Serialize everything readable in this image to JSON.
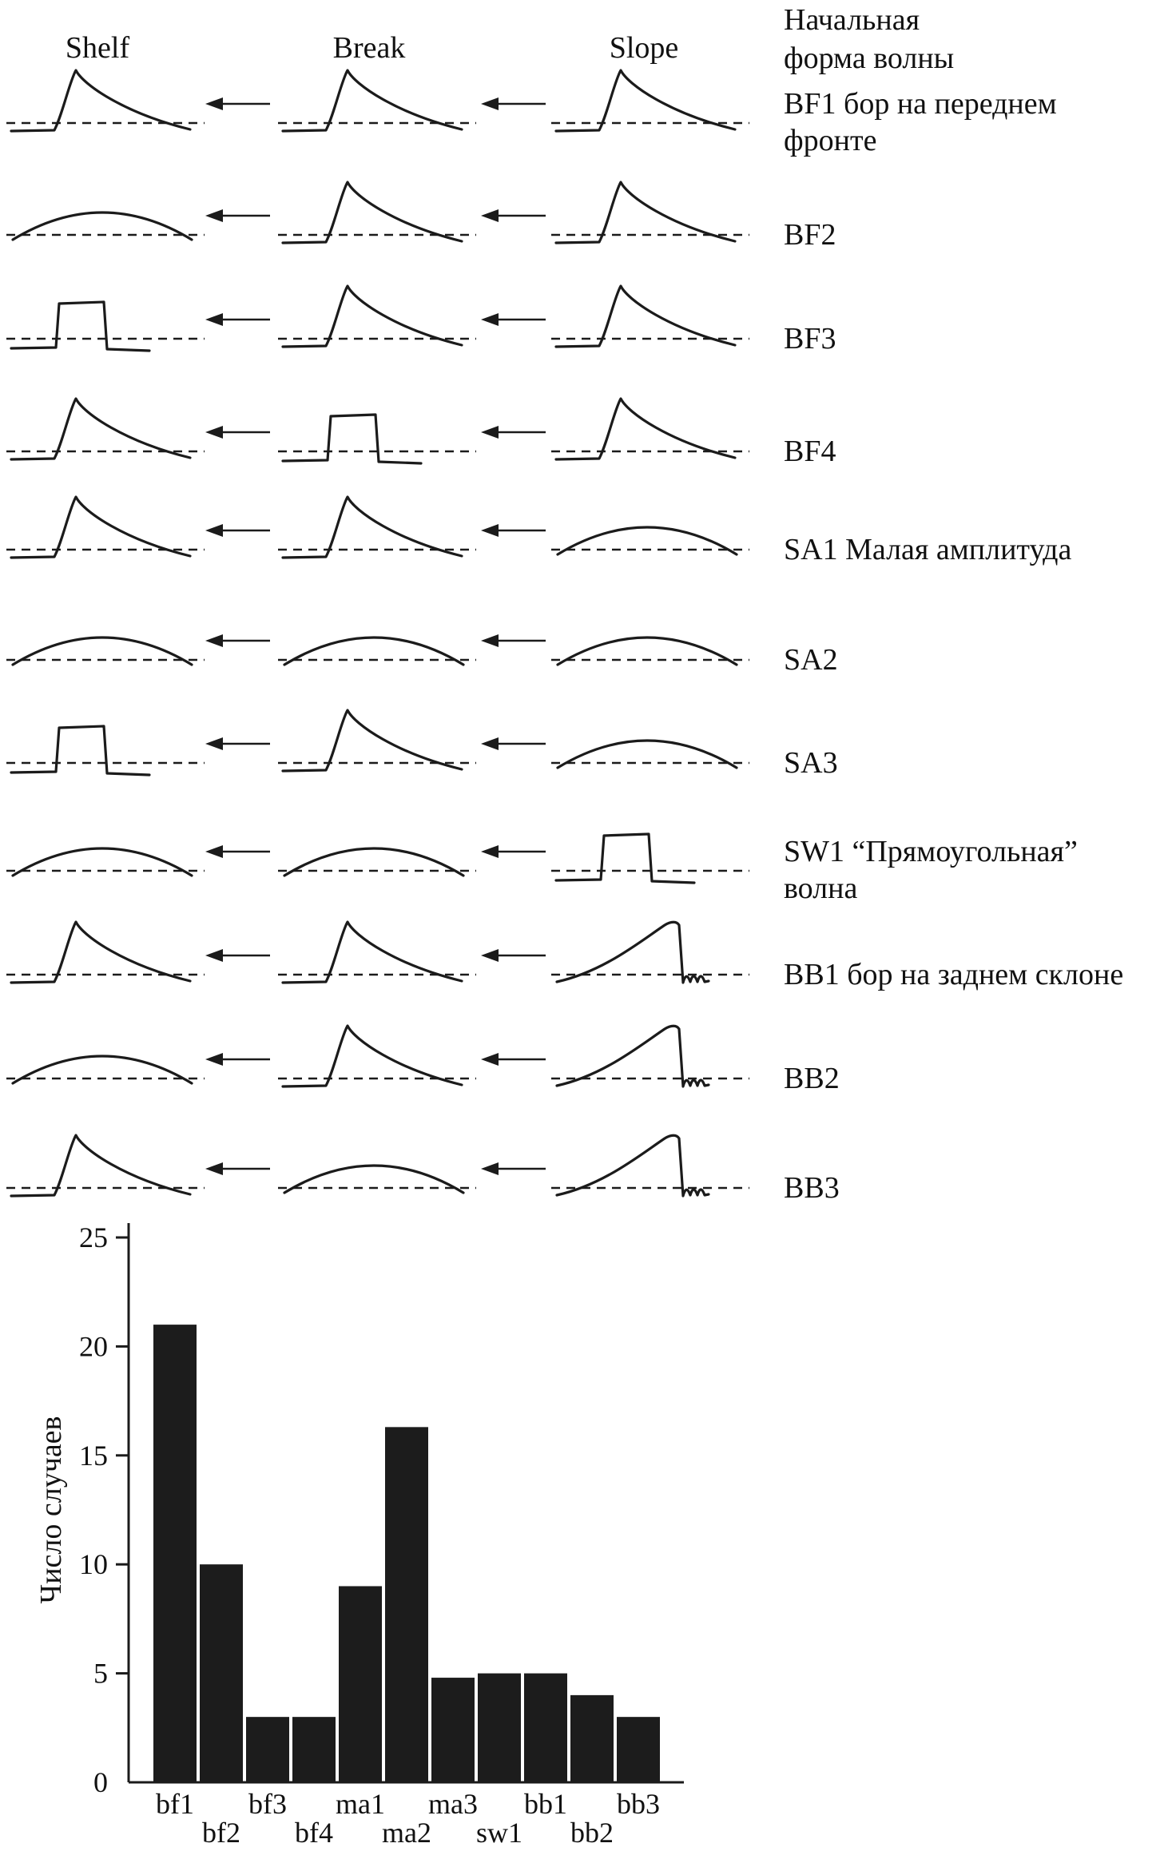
{
  "title_block": {
    "col_shelf": "Shelf",
    "col_break": "Break",
    "col_slope": "Slope",
    "right_line1": "Начальная",
    "right_line2": "форма волны"
  },
  "diagram": {
    "line_color": "#1b1b1b",
    "shape_legend": {
      "bore": "sharp-crested-wave",
      "hump": "smooth-low-wave",
      "square": "rectangular-wave",
      "backbore": "wave-with-undular-back-slope"
    },
    "rows": [
      {
        "label": "BF1 бор на переднем",
        "label2": "фронте",
        "shapes": [
          "bore",
          "bore",
          "bore"
        ]
      },
      {
        "label": "BF2",
        "shapes": [
          "hump",
          "bore",
          "bore"
        ]
      },
      {
        "label": "BF3",
        "shapes": [
          "square",
          "bore",
          "bore"
        ]
      },
      {
        "label": "BF4",
        "shapes": [
          "bore",
          "square",
          "bore"
        ]
      },
      {
        "label": "SA1 Малая амплитуда",
        "shapes": [
          "bore",
          "bore",
          "hump"
        ]
      },
      {
        "label": "SA2",
        "shapes": [
          "hump",
          "hump",
          "hump"
        ]
      },
      {
        "label": "SA3",
        "shapes": [
          "square",
          "bore",
          "hump"
        ]
      },
      {
        "label": "SW1 “Прямоугольная”",
        "label2": "волна",
        "shapes": [
          "hump",
          "hump",
          "square"
        ]
      },
      {
        "label": "BB1 бор на заднем склоне",
        "shapes": [
          "bore",
          "bore",
          "backbore"
        ]
      },
      {
        "label": "BB2",
        "shapes": [
          "hump",
          "bore",
          "backbore"
        ]
      },
      {
        "label": "BB3",
        "shapes": [
          "bore",
          "hump",
          "backbore"
        ]
      }
    ]
  },
  "chart_data": {
    "type": "bar",
    "categories": [
      "bf1",
      "bf2",
      "bf3",
      "bf4",
      "ma1",
      "ma2",
      "ma3",
      "sw1",
      "bb1",
      "bb2",
      "bb3"
    ],
    "values": [
      21,
      10,
      3,
      3,
      9,
      16.3,
      4.8,
      5,
      5,
      4,
      3
    ],
    "title": "",
    "xlabel": "",
    "ylabel": "Число случаев",
    "ylim": [
      0,
      25
    ],
    "yticks": [
      0,
      5,
      10,
      15,
      20,
      25
    ],
    "grid": false,
    "legend": false,
    "bar_color": "#1c1c1c"
  }
}
